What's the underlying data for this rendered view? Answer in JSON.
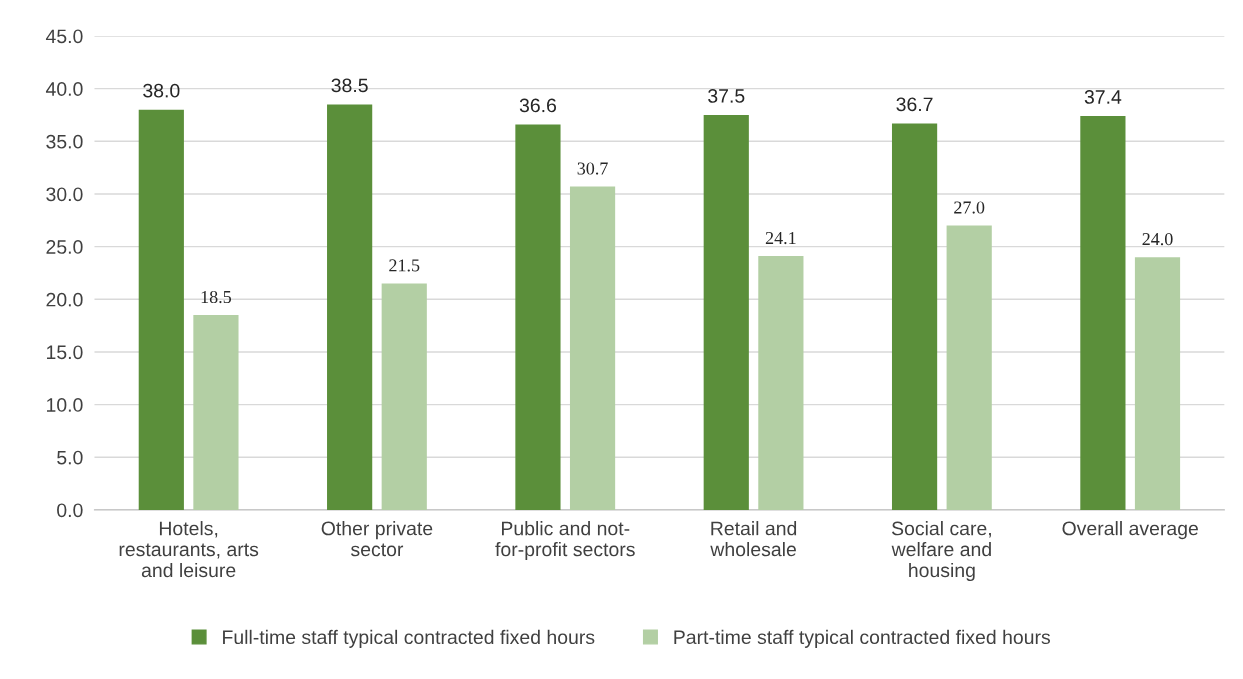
{
  "chart_data": {
    "type": "bar",
    "categories": [
      "Hotels,\nrestaurants, arts\nand leisure",
      "Other private\nsector",
      "Public and not-\nfor-profit sectors",
      "Retail and\nwholesale",
      "Social care,\nwelfare and\nhousing",
      "Overall average"
    ],
    "series": [
      {
        "name": "Full-time staff typical contracted fixed hours",
        "color": "#5b8f3a",
        "values": [
          38.0,
          38.5,
          36.6,
          37.5,
          36.7,
          37.4
        ],
        "value_labels": [
          "38.0",
          "38.5",
          "36.6",
          "37.5",
          "36.7",
          "37.4"
        ]
      },
      {
        "name": "Part-time staff typical contracted fixed hours",
        "color": "#b3cfa4",
        "values": [
          18.5,
          21.5,
          30.7,
          24.1,
          27.0,
          24.0
        ],
        "value_labels": [
          "18.5",
          "21.5",
          "30.7",
          "24.1",
          "27.0",
          "24.0"
        ]
      }
    ],
    "ylim": [
      0,
      45
    ],
    "yticks": [
      {
        "value": 0,
        "label": "0.0"
      },
      {
        "value": 5,
        "label": "5.0"
      },
      {
        "value": 10,
        "label": "10.0"
      },
      {
        "value": 15,
        "label": "15.0"
      },
      {
        "value": 20,
        "label": "20.0"
      },
      {
        "value": 25,
        "label": "25.0"
      },
      {
        "value": 30,
        "label": "30.0"
      },
      {
        "value": 35,
        "label": "35.0"
      },
      {
        "value": 40,
        "label": "40.0"
      },
      {
        "value": 45,
        "label": "45.0"
      }
    ],
    "grid": "y",
    "legend": "bottom"
  }
}
